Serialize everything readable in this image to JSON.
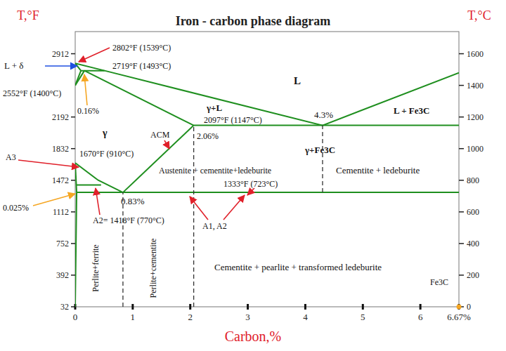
{
  "chart_data": {
    "type": "line",
    "title": "Iron - carbon phase diagram",
    "x_label": "Carbon,%",
    "y_label": "T,°C",
    "y2_label": "T,°F",
    "xlim": [
      0,
      6.67
    ],
    "xticks": [
      0,
      1,
      2,
      3,
      4,
      5,
      6,
      {
        "value": 6.67,
        "label": "6.67%"
      }
    ],
    "ylim": [
      0,
      1740
    ],
    "yticks": [
      0,
      200,
      400,
      600,
      800,
      1000,
      1200,
      1400,
      1600
    ],
    "y2lim": [
      32,
      3164
    ],
    "y2ticks": [
      32,
      392,
      752,
      1112,
      1472,
      1832,
      2192,
      2912
    ],
    "series": [
      {
        "x": [
          0,
          0.51,
          4.3,
          6.67
        ],
        "values": [
          1539,
          1493,
          1147,
          1480
        ],
        "color": "#1f8f1f",
        "line_style": "solid"
      },
      {
        "x": [
          0,
          0.1
        ],
        "values": [
          1539,
          1493
        ],
        "color": "#1f8f1f",
        "line_style": "solid"
      },
      {
        "x": [
          0,
          0.1
        ],
        "values": [
          1400,
          1493
        ],
        "color": "#1f8f1f",
        "line_style": "solid"
      },
      {
        "x": [
          0,
          0.16
        ],
        "values": [
          1400,
          1493
        ],
        "color": "#1f8f1f",
        "line_style": "solid"
      },
      {
        "x": [
          0.1,
          0.51
        ],
        "values": [
          1493,
          1493
        ],
        "color": "#1f8f1f",
        "line_style": "solid"
      },
      {
        "x": [
          0.16,
          2.06
        ],
        "values": [
          1493,
          1147
        ],
        "color": "#1f8f1f",
        "line_style": "solid"
      },
      {
        "x": [
          2.06,
          6.67
        ],
        "values": [
          1147,
          1147
        ],
        "color": "#1f8f1f",
        "line_style": "solid"
      },
      {
        "x": [
          0.83,
          2.06
        ],
        "values": [
          723,
          1147
        ],
        "color": "#1f8f1f",
        "line_style": "solid"
      },
      {
        "x": [
          0,
          0.4,
          0.83
        ],
        "values": [
          910,
          800,
          723
        ],
        "color": "#1f8f1f",
        "line_style": "solid"
      },
      {
        "x": [
          0.02,
          0.45
        ],
        "values": [
          770,
          770
        ],
        "color": "#1f8f1f",
        "line_style": "solid"
      },
      {
        "x": [
          0,
          0.025
        ],
        "values": [
          910,
          723
        ],
        "color": "#1f8f1f",
        "line_style": "solid"
      },
      {
        "x": [
          0.025,
          0.012,
          0
        ],
        "values": [
          723,
          350,
          0
        ],
        "color": "#1f8f1f",
        "line_style": "solid"
      },
      {
        "x": [
          0.025,
          6.67
        ],
        "values": [
          723,
          723
        ],
        "color": "#1f8f1f",
        "line_style": "solid"
      },
      {
        "x": [
          0.83,
          0.83
        ],
        "values": [
          0,
          723
        ],
        "color": "#333333",
        "line_style": "dashed"
      },
      {
        "x": [
          2.06,
          2.06
        ],
        "values": [
          0,
          1147
        ],
        "color": "#333333",
        "line_style": "dashed"
      },
      {
        "x": [
          4.3,
          4.3
        ],
        "values": [
          723,
          1147
        ],
        "color": "#333333",
        "line_style": "dashed"
      }
    ],
    "annotations": [
      "2802°F (1539°C)",
      "L + δ",
      "2719°F (1493°C)",
      "2552°F (1400°C)",
      "0.16%",
      "L",
      "γ+L",
      "γ",
      "ACM",
      "2097°F (1147°C)",
      "2.06%",
      "4.3%",
      "L + Fe3C",
      "γ+Fe3C",
      "1670°F (910°C)",
      "A3",
      "Austenite + cementite+ledeburite",
      "Cementite + ledeburite",
      "1333°F (723°C)",
      "0.025%",
      "0.83%",
      "A2= 1418°F (770°C)",
      "A1, A2",
      "Perlite+ferrite",
      "Perlite+cementite",
      "Cementite + pearlite + transformed ledeburite",
      "Fe3C"
    ]
  }
}
